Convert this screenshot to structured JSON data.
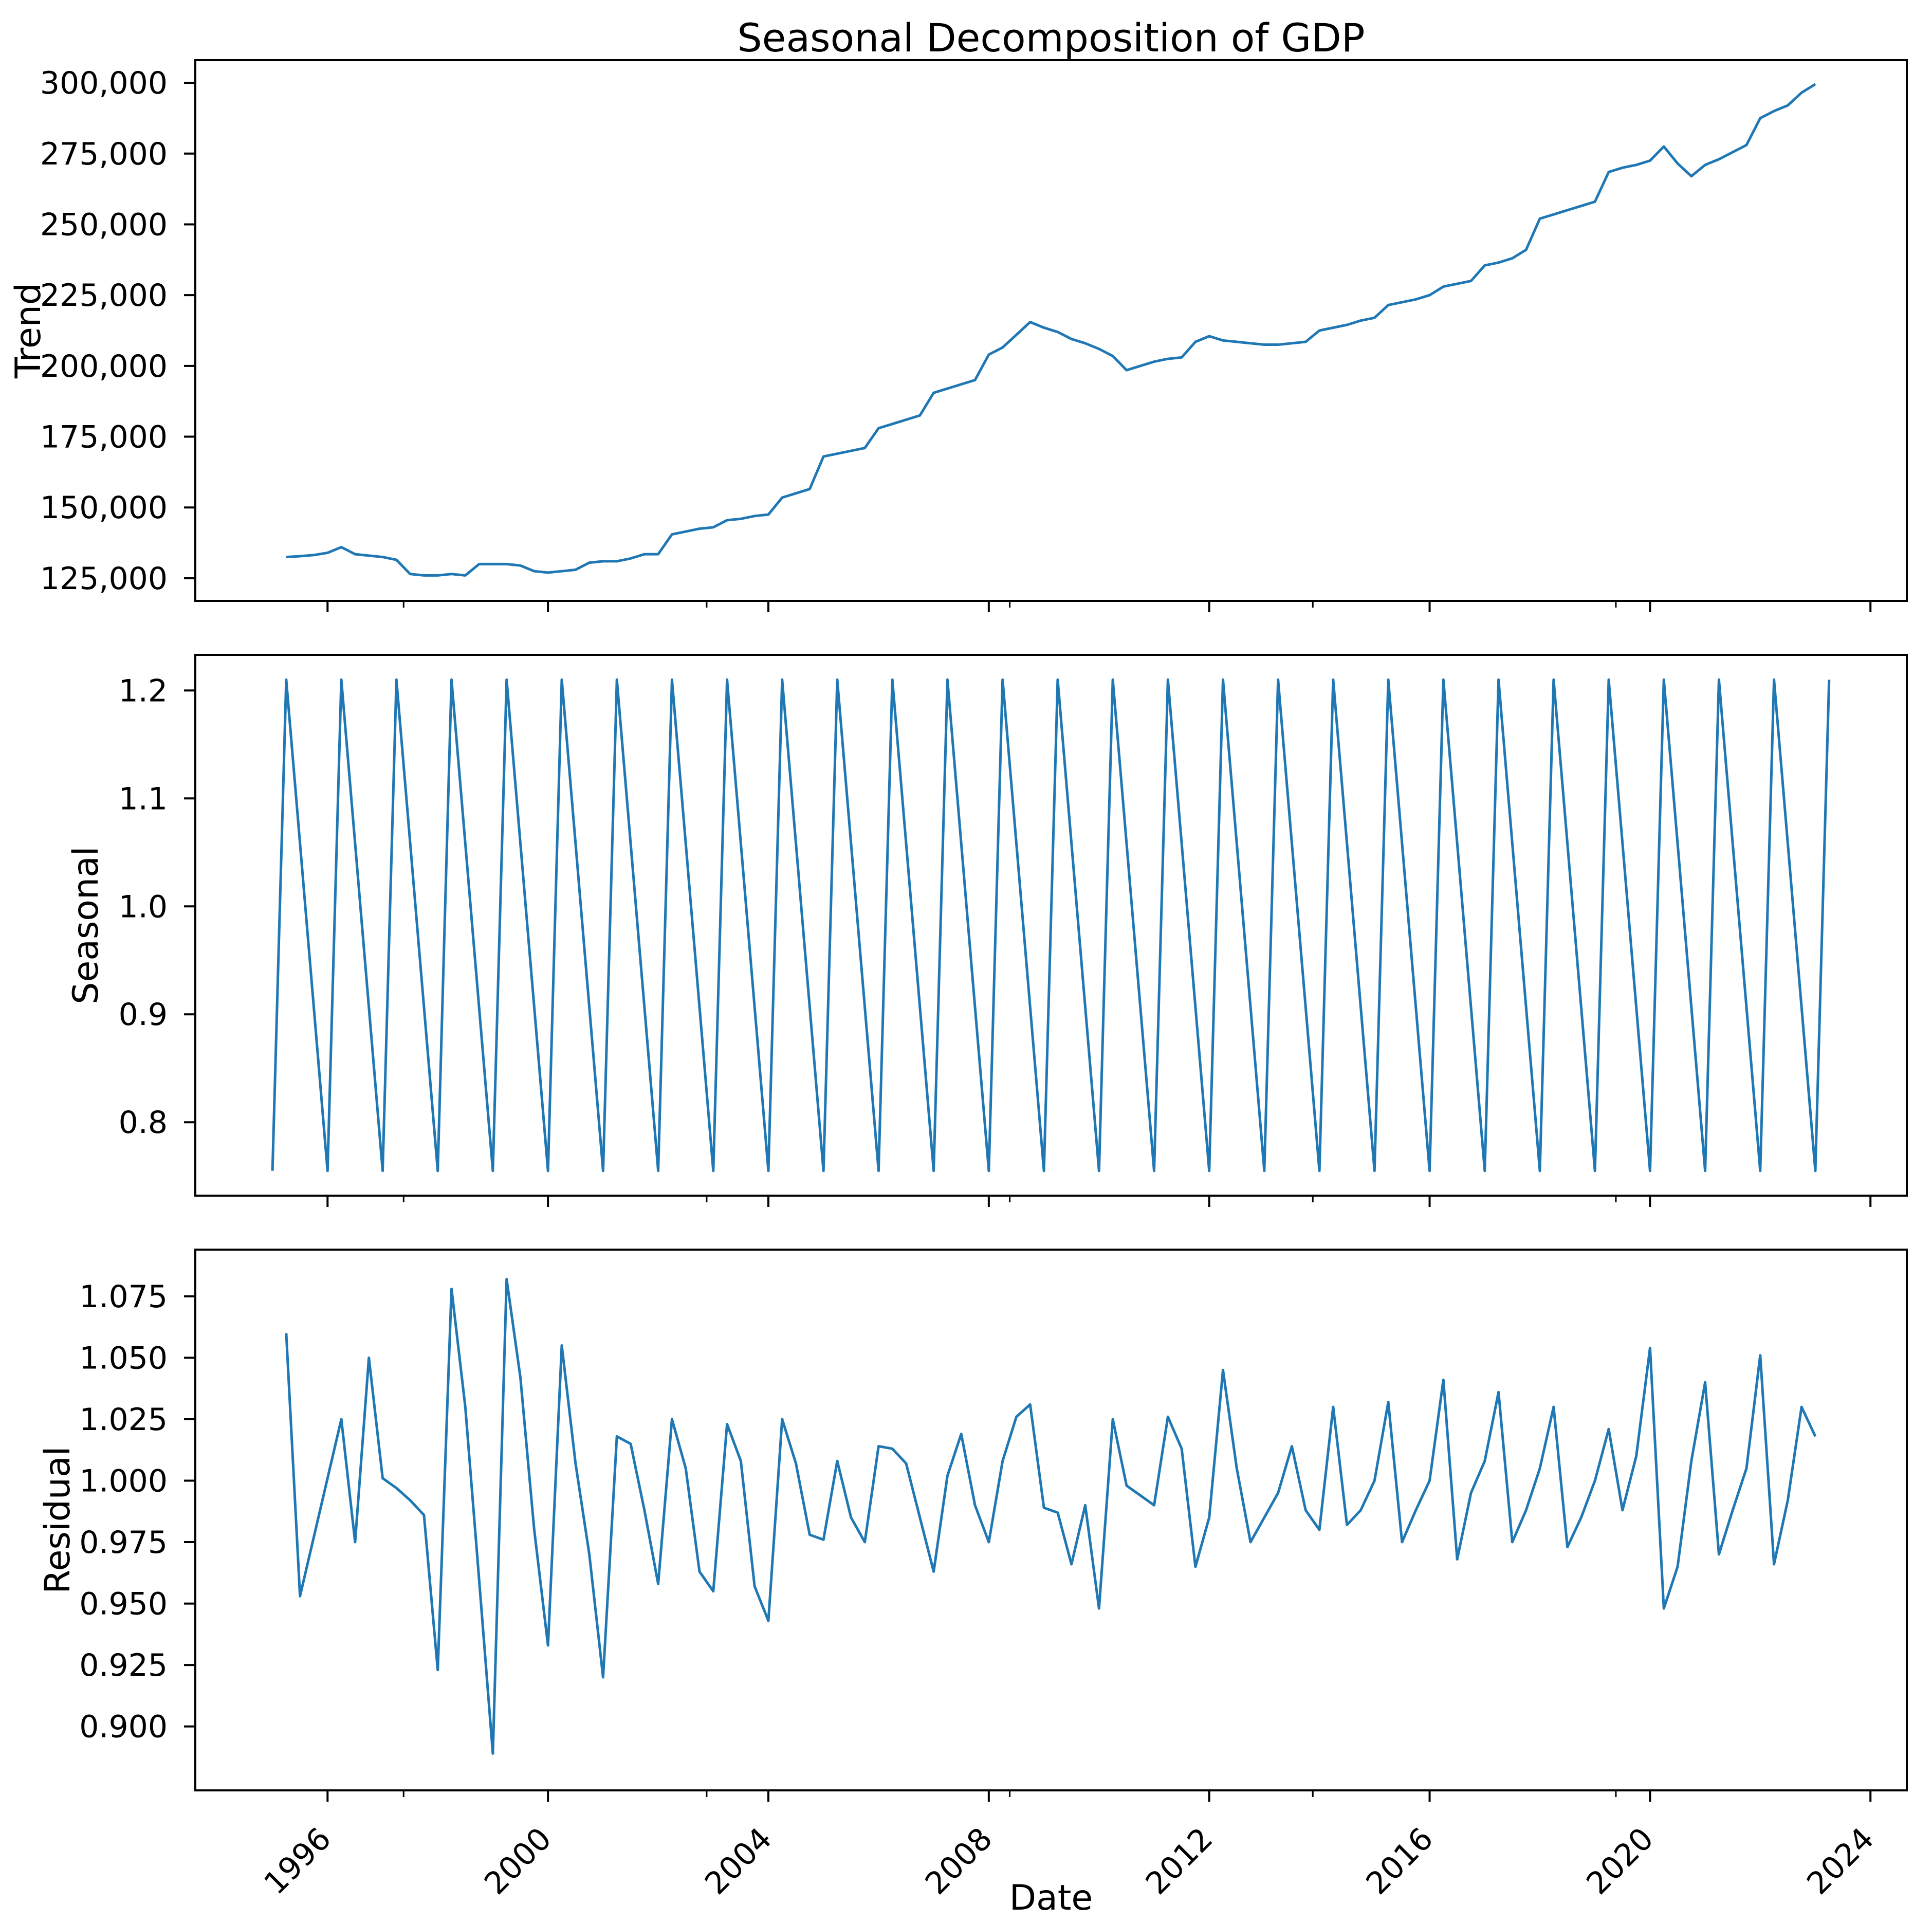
{
  "title": "Seasonal Decomposition of GDP",
  "line_color": "#1f77b4",
  "axis_color": "#000000",
  "background_color": "#ffffff",
  "x_axis": {
    "label": "Date",
    "xlim": [
      1993.6,
      2024.66
    ],
    "major_ticks": [
      1996,
      2000,
      2004,
      2008,
      2012,
      2016,
      2020,
      2024
    ],
    "major_tick_labels": [
      "1996",
      "2000",
      "2004",
      "2008",
      "2012",
      "2016",
      "2020",
      "2024"
    ],
    "minor_ticks": [
      1997.38,
      2002.88,
      2008.38,
      2013.88,
      2019.38
    ],
    "tick_label_rotation_deg": -45
  },
  "chart_data": [
    {
      "type": "line",
      "panel": "trend",
      "ylabel": "Trend",
      "ylim": [
        117000,
        308000
      ],
      "yticks": [
        125000,
        150000,
        175000,
        200000,
        225000,
        250000,
        275000,
        300000
      ],
      "ytick_labels": [
        "125,000",
        "150,000",
        "175,000",
        "200,000",
        "225,000",
        "250,000",
        "275,000",
        "300,000"
      ],
      "x_start": 1995.25,
      "x_step": 0.25,
      "values": [
        132500,
        132800,
        133200,
        134000,
        136000,
        133500,
        133000,
        132500,
        131500,
        126500,
        126000,
        126000,
        126500,
        126000,
        130000,
        130000,
        130000,
        129500,
        127500,
        127000,
        127500,
        128000,
        130500,
        131000,
        131000,
        132000,
        133500,
        133500,
        140500,
        141500,
        142500,
        143000,
        145500,
        146000,
        147000,
        147500,
        153500,
        155000,
        156500,
        168000,
        169000,
        170000,
        171000,
        178000,
        179500,
        181000,
        182500,
        190500,
        192000,
        193500,
        195000,
        204000,
        206500,
        211000,
        215500,
        213500,
        212000,
        209500,
        208000,
        206000,
        203500,
        198500,
        200000,
        201500,
        202500,
        203000,
        208500,
        210500,
        209000,
        208500,
        208000,
        207500,
        207500,
        208000,
        208500,
        212500,
        213500,
        214500,
        216000,
        217000,
        221500,
        222500,
        223500,
        225000,
        228000,
        229000,
        230000,
        235500,
        236500,
        238000,
        241000,
        252000,
        253500,
        255000,
        256500,
        258000,
        268500,
        270000,
        271000,
        272500,
        277500,
        271500,
        267000,
        271000,
        273000,
        275500,
        278000,
        287500,
        290000,
        292000,
        296500,
        299500
      ]
    },
    {
      "type": "line",
      "panel": "seasonal",
      "ylabel": "Seasonal",
      "ylim": [
        0.732,
        1.233
      ],
      "yticks": [
        0.8,
        0.9,
        1.0,
        1.1,
        1.2
      ],
      "ytick_labels": [
        "0.8",
        "0.9",
        "1.0",
        "1.1",
        "1.2"
      ],
      "x_start": 1995.0,
      "x_step": 0.25,
      "n_points": 114,
      "repeating_pattern": [
        0.755,
        1.21,
        1.0583,
        0.9067
      ]
    },
    {
      "type": "line",
      "panel": "residual",
      "ylabel": "Residual",
      "ylim": [
        0.874,
        1.094
      ],
      "yticks": [
        0.9,
        0.925,
        0.95,
        0.975,
        1.0,
        1.025,
        1.05,
        1.075
      ],
      "ytick_labels": [
        "0.900",
        "0.925",
        "0.950",
        "0.975",
        "1.000",
        "1.025",
        "1.050",
        "1.075"
      ],
      "x_start": 1995.25,
      "x_step": 0.25,
      "values": [
        1.06,
        0.953,
        0.977,
        1.001,
        1.025,
        0.975,
        1.05,
        1.001,
        0.997,
        0.992,
        0.986,
        0.923,
        1.078,
        1.03,
        0.96,
        0.889,
        1.082,
        1.042,
        0.98,
        0.933,
        1.055,
        1.007,
        0.97,
        0.92,
        1.018,
        1.015,
        0.988,
        0.958,
        1.025,
        1.005,
        0.963,
        0.955,
        1.023,
        1.008,
        0.957,
        0.943,
        1.025,
        1.007,
        0.978,
        0.976,
        1.008,
        0.985,
        0.975,
        1.014,
        1.013,
        1.007,
        0.985,
        0.963,
        1.002,
        1.019,
        0.99,
        0.975,
        1.008,
        1.026,
        1.031,
        0.989,
        0.987,
        0.966,
        0.99,
        0.948,
        1.025,
        0.998,
        0.994,
        0.99,
        1.026,
        1.013,
        0.965,
        0.985,
        1.045,
        1.005,
        0.975,
        0.985,
        0.995,
        1.014,
        0.988,
        0.98,
        1.03,
        0.982,
        0.988,
        1.0,
        1.032,
        0.975,
        0.988,
        1.0,
        1.041,
        0.968,
        0.995,
        1.008,
        1.036,
        0.975,
        0.988,
        1.005,
        1.03,
        0.973,
        0.985,
        1.0,
        1.021,
        0.988,
        1.01,
        1.054,
        0.948,
        0.965,
        1.008,
        1.04,
        0.97,
        0.988,
        1.005,
        1.051,
        0.966,
        0.992,
        1.03,
        1.018
      ]
    }
  ]
}
